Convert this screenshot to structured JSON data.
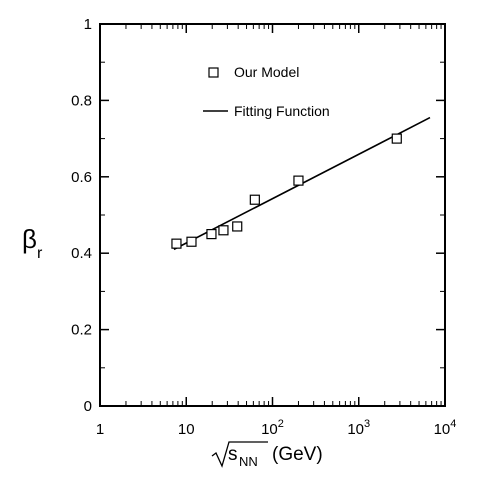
{
  "chart_data": {
    "type": "scatter",
    "title": "",
    "xscale": "log",
    "xlim": [
      1,
      10000
    ],
    "ylim": [
      0,
      1
    ],
    "x_ticks": [
      1,
      10,
      100,
      1000,
      10000
    ],
    "x_tick_labels": [
      {
        "base": "1",
        "exp": ""
      },
      {
        "base": "10",
        "exp": ""
      },
      {
        "base": "10",
        "exp": "2"
      },
      {
        "base": "10",
        "exp": "3"
      },
      {
        "base": "10",
        "exp": "4"
      }
    ],
    "y_ticks": [
      0,
      0.2,
      0.4,
      0.6,
      0.8,
      1
    ],
    "y_tick_labels": [
      "0",
      "0.2",
      "0.4",
      "0.6",
      "0.8",
      "1"
    ],
    "xlabel": {
      "symbol": "s",
      "subscript": "NN",
      "unit": "(GeV)"
    },
    "ylabel": {
      "symbol": "β",
      "subscript": "r"
    },
    "grid": false,
    "legend": {
      "position": "top-center"
    },
    "series": [
      {
        "name": "Our Model",
        "kind": "markers",
        "marker": "square",
        "x": [
          7.7,
          11.5,
          19.6,
          27,
          39,
          62.4,
          200,
          2760
        ],
        "y": [
          0.425,
          0.43,
          0.45,
          0.46,
          0.47,
          0.54,
          0.59,
          0.7
        ]
      },
      {
        "name": "Fitting Function",
        "kind": "line",
        "x": [
          7.2,
          6700
        ],
        "y": [
          0.41,
          0.755
        ]
      }
    ]
  }
}
